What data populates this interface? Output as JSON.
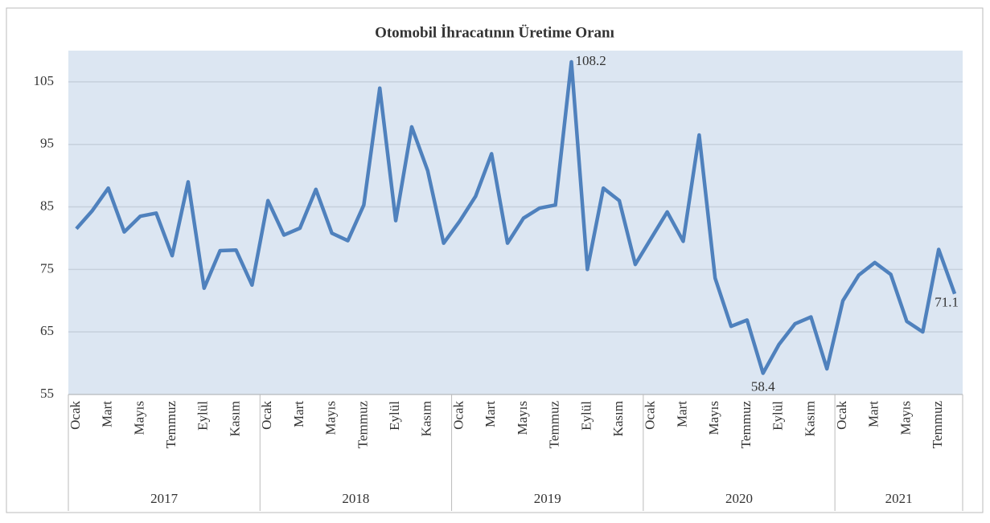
{
  "chart_data": {
    "type": "line",
    "title": "Otomobil İhracatının  Üretime Oranı",
    "categories": [
      "Ocak",
      null,
      "Mart",
      null,
      "Mayıs",
      null,
      "Temmuz",
      null,
      "Eylül",
      null,
      "Kasım",
      null,
      "Ocak",
      null,
      "Mart",
      null,
      "Mayıs",
      null,
      "Temmuz",
      null,
      "Eylül",
      null,
      "Kasım",
      null,
      "Ocak",
      null,
      "Mart",
      null,
      "Mayıs",
      null,
      "Temmuz",
      null,
      "Eylül",
      null,
      "Kasım",
      null,
      "Ocak",
      null,
      "Mart",
      null,
      "Mayıs",
      null,
      "Temmuz",
      null,
      "Eylül",
      null,
      "Kasım",
      null,
      "Ocak",
      null,
      "Mart",
      null,
      "Mayıs",
      null,
      "Temmuz",
      null
    ],
    "year_groups": [
      {
        "label": "2017",
        "months": 12
      },
      {
        "label": "2018",
        "months": 12
      },
      {
        "label": "2019",
        "months": 12
      },
      {
        "label": "2020",
        "months": 12
      },
      {
        "label": "2021",
        "months": 8
      }
    ],
    "series": [
      {
        "name": "Otomobil İhracatının Üretime Oranı",
        "color": "#4f81bd",
        "values": [
          81.5,
          84.4,
          88,
          81,
          83.5,
          84,
          77.2,
          89,
          72,
          78,
          78.1,
          72.5,
          86,
          80.5,
          81.6,
          87.8,
          80.8,
          79.6,
          85.3,
          104,
          82.8,
          97.8,
          90.8,
          79.2,
          82.7,
          86.7,
          93.5,
          79.2,
          83.2,
          84.8,
          85.3,
          108.2,
          75,
          88,
          86,
          75.8,
          80,
          84.2,
          79.5,
          96.5,
          73.6,
          65.9,
          66.9,
          58.4,
          63,
          66.3,
          67.4,
          59.1,
          70,
          74.1,
          76.1,
          74.2,
          66.7,
          65,
          78.2,
          71.1
        ],
        "value_labels": [
          null,
          null,
          null,
          null,
          null,
          null,
          null,
          null,
          null,
          null,
          null,
          null,
          null,
          null,
          null,
          null,
          null,
          null,
          null,
          null,
          null,
          null,
          null,
          null,
          null,
          null,
          null,
          null,
          null,
          null,
          null,
          "108.2",
          null,
          null,
          null,
          null,
          null,
          null,
          null,
          null,
          null,
          null,
          null,
          "58.4",
          null,
          null,
          null,
          null,
          null,
          null,
          null,
          null,
          null,
          null,
          null,
          "71.1"
        ]
      }
    ],
    "ylim": [
      55,
      110
    ],
    "yticks": [
      55,
      65,
      75,
      85,
      95,
      105
    ],
    "grid": true
  }
}
